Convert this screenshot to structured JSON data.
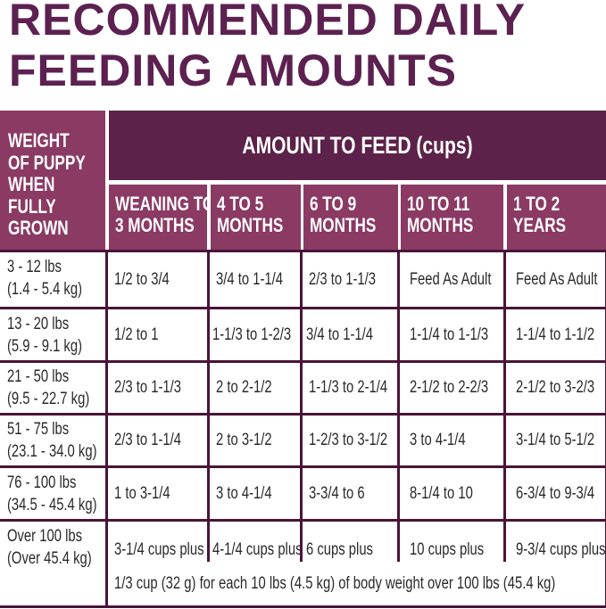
{
  "title": {
    "line1": "RECOMMENDED DAILY",
    "line2": "FEEDING AMOUNTS"
  },
  "colors": {
    "title": "#5c2150",
    "header_dark": "#5c2249",
    "header_light": "#8b3a64",
    "rule": "#4a1438"
  },
  "table": {
    "weight_header": [
      "WEIGHT",
      "OF PUPPY",
      "WHEN",
      "FULLY",
      "GROWN"
    ],
    "amount_header": "AMOUNT TO FEED (cups)",
    "age_columns": [
      [
        "WEANING TO",
        "3 MONTHS"
      ],
      [
        "4 TO 5",
        "MONTHS"
      ],
      [
        "6 TO 9",
        "MONTHS"
      ],
      [
        "10 TO 11",
        "MONTHS"
      ],
      [
        "1 TO 2",
        "YEARS"
      ]
    ],
    "rows": [
      {
        "weight": [
          "3 - 12 lbs",
          "(1.4 - 5.4 kg)"
        ],
        "amounts": [
          "1/2 to 3/4",
          "3/4 to 1-1/4",
          "2/3 to 1-1/3",
          "Feed As Adult",
          "Feed As Adult"
        ]
      },
      {
        "weight": [
          "13 - 20 lbs",
          "(5.9 - 9.1 kg)"
        ],
        "amounts": [
          "1/2 to 1",
          "1-1/3 to 1-2/3",
          "3/4 to 1-1/4",
          "1-1/4 to 1-1/3",
          "1-1/4 to 1-1/2"
        ]
      },
      {
        "weight": [
          "21 - 50 lbs",
          "(9.5 - 22.7 kg)"
        ],
        "amounts": [
          "2/3 to 1-1/3",
          "2 to 2-1/2",
          "1-1/3 to 2-1/4",
          "2-1/2 to 2-2/3",
          "2-1/2 to 3-2/3"
        ]
      },
      {
        "weight": [
          "51 - 75 lbs",
          "(23.1 - 34.0 kg)"
        ],
        "amounts": [
          "2/3 to 1-1/4",
          "2 to 3-1/2",
          "1-2/3 to 3-1/2",
          "3 to 4-1/4",
          "3-1/4 to 5-1/2"
        ]
      },
      {
        "weight": [
          "76 - 100 lbs",
          "(34.5 - 45.4 kg)"
        ],
        "amounts": [
          "1 to 3-1/4",
          "3 to 4-1/4",
          "3-3/4 to 6",
          "8-1/4 to 10",
          "6-3/4 to 9-3/4"
        ]
      },
      {
        "weight": [
          "Over 100 lbs",
          "(Over 45.4 kg)"
        ],
        "amounts": [
          "3-1/4 cups plus",
          "4-1/4 cups plus",
          "6 cups plus",
          "10 cups plus",
          "9-3/4 cups plus"
        ]
      }
    ],
    "over_100_note": "1/3 cup (32 g) for each 10 lbs (4.5 kg) of body weight over 100 lbs (45.4 kg)"
  }
}
